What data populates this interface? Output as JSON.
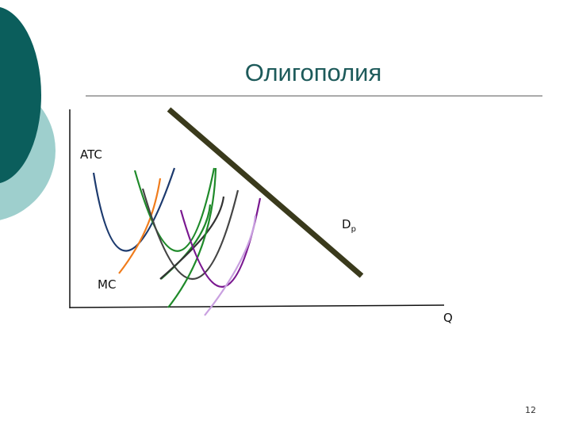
{
  "title": "Олигополия",
  "labels": {
    "atc": "ATC",
    "d": "D",
    "d_sub": "p",
    "mc": "MC",
    "q": "Q"
  },
  "page_number": "12"
}
